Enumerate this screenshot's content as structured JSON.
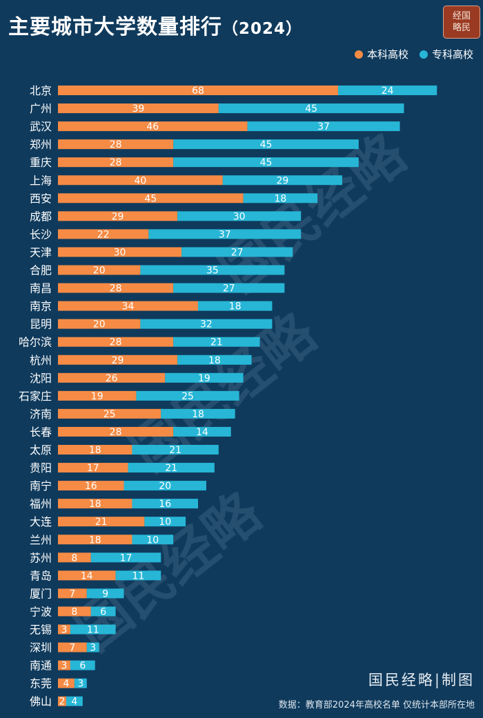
{
  "title": "主要城市大学数量排行",
  "title_year": "（2024）",
  "logo": {
    "line1": "经国",
    "line2": "略民"
  },
  "legend": [
    {
      "label": "本科高校",
      "color": "#f58b45"
    },
    {
      "label": "专科高校",
      "color": "#27b6d6"
    }
  ],
  "watermark": "国民经略",
  "footer_brand": "国民经略|制图",
  "source": "数据：教育部2024年高校名单 仅统计本部所在地",
  "chart_data": {
    "type": "bar",
    "orientation": "horizontal",
    "stacked": true,
    "categories": [
      "北京",
      "广州",
      "武汉",
      "郑州",
      "重庆",
      "上海",
      "西安",
      "成都",
      "长沙",
      "天津",
      "合肥",
      "南昌",
      "南京",
      "昆明",
      "哈尔滨",
      "杭州",
      "沈阳",
      "石家庄",
      "济南",
      "长春",
      "太原",
      "贵阳",
      "南宁",
      "福州",
      "大连",
      "兰州",
      "苏州",
      "青岛",
      "厦门",
      "宁波",
      "无锡",
      "深圳",
      "南通",
      "东莞",
      "佛山"
    ],
    "series": [
      {
        "name": "本科高校",
        "color": "#f58b45",
        "values": [
          68,
          39,
          46,
          28,
          28,
          40,
          45,
          29,
          22,
          30,
          20,
          28,
          34,
          20,
          28,
          29,
          26,
          19,
          25,
          28,
          18,
          17,
          16,
          18,
          21,
          18,
          8,
          14,
          7,
          8,
          3,
          7,
          3,
          4,
          2
        ]
      },
      {
        "name": "专科高校",
        "color": "#27b6d6",
        "values": [
          24,
          45,
          37,
          45,
          45,
          29,
          18,
          30,
          37,
          27,
          35,
          27,
          18,
          32,
          21,
          18,
          19,
          25,
          18,
          14,
          21,
          21,
          20,
          16,
          10,
          10,
          17,
          11,
          9,
          6,
          11,
          3,
          6,
          3,
          4
        ]
      }
    ],
    "xlim": [
      0,
      92
    ],
    "grid": false,
    "legend_position": "top-right"
  }
}
